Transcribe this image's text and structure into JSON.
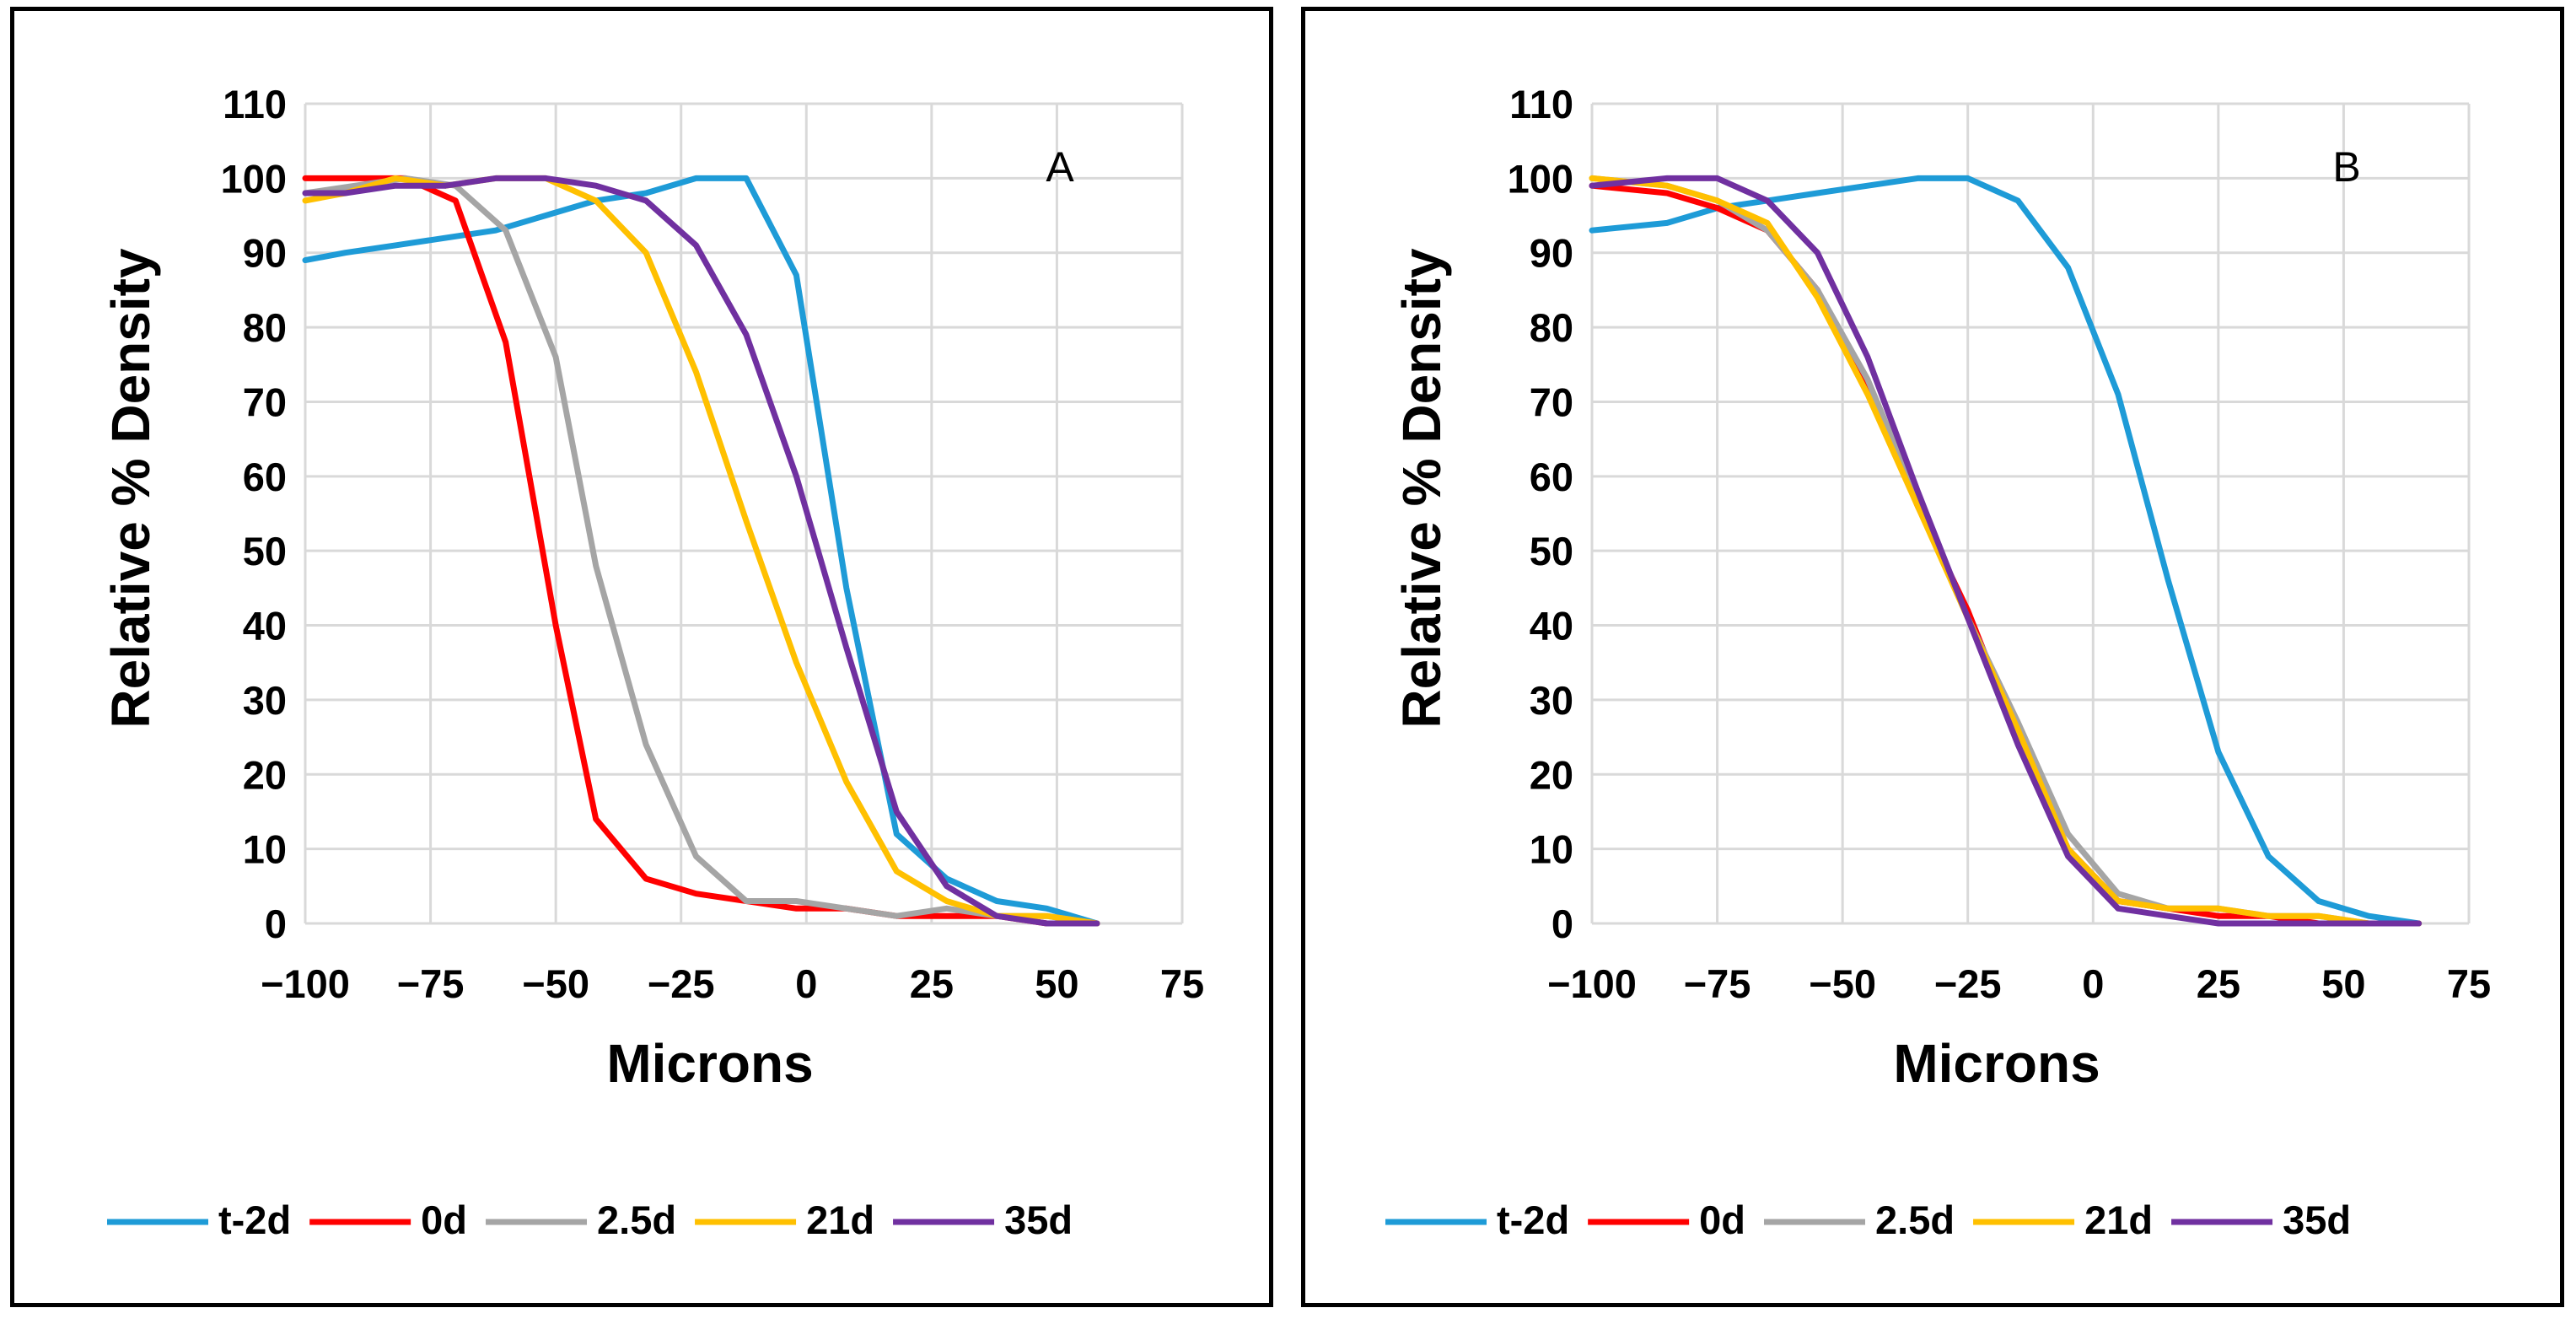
{
  "chart_data": [
    {
      "type": "line",
      "panel_label": "A",
      "xlabel": "Microns",
      "ylabel": "Relative % Density",
      "xlim": [
        -100,
        75
      ],
      "ylim": [
        0,
        110
      ],
      "xticks": [
        -100,
        -75,
        -50,
        -25,
        0,
        25,
        50,
        75
      ],
      "xtick_labels": [
        "−100",
        "−75",
        "−50",
        "−25",
        "0",
        "25",
        "50",
        "75"
      ],
      "yticks": [
        0,
        10,
        20,
        30,
        40,
        50,
        60,
        70,
        80,
        90,
        100,
        110
      ],
      "ytick_labels": [
        "0",
        "10",
        "20",
        "30",
        "40",
        "50",
        "60",
        "70",
        "80",
        "90",
        "100",
        "110"
      ],
      "grid": true,
      "legend_position": "bottom",
      "series": [
        {
          "name": "t-2d",
          "color": "#1E9BD7",
          "x": [
            -100,
            -92,
            -82,
            -72,
            -62,
            -52,
            -42,
            -32,
            -22,
            -12,
            -2,
            8,
            18,
            28,
            38,
            48,
            58
          ],
          "y": [
            89,
            90,
            91,
            92,
            93,
            95,
            97,
            98,
            100,
            100,
            87,
            45,
            12,
            6,
            3,
            2,
            0
          ]
        },
        {
          "name": "0d",
          "color": "#FF0000",
          "x": [
            -100,
            -90,
            -80,
            -70,
            -60,
            -50,
            -42,
            -32,
            -22,
            -12,
            -2,
            8,
            18,
            28,
            38,
            48,
            58
          ],
          "y": [
            100,
            100,
            100,
            97,
            78,
            40,
            14,
            6,
            4,
            3,
            2,
            2,
            1,
            1,
            1,
            0,
            0
          ]
        },
        {
          "name": "2.5d",
          "color": "#A5A5A5",
          "x": [
            -100,
            -90,
            -80,
            -70,
            -60,
            -50,
            -42,
            -32,
            -22,
            -12,
            -2,
            8,
            18,
            28,
            38,
            48,
            58
          ],
          "y": [
            98,
            99,
            100,
            99,
            93,
            76,
            48,
            24,
            9,
            3,
            3,
            2,
            1,
            2,
            1,
            1,
            0
          ]
        },
        {
          "name": "21d",
          "color": "#FFC000",
          "x": [
            -100,
            -92,
            -82,
            -72,
            -62,
            -52,
            -42,
            -32,
            -22,
            -12,
            -2,
            8,
            18,
            28,
            38,
            48,
            58
          ],
          "y": [
            97,
            98,
            100,
            99,
            100,
            100,
            97,
            90,
            74,
            54,
            35,
            19,
            7,
            3,
            1,
            1,
            0
          ]
        },
        {
          "name": "35d",
          "color": "#7030A0",
          "x": [
            -100,
            -92,
            -82,
            -72,
            -62,
            -52,
            -42,
            -32,
            -22,
            -12,
            -2,
            8,
            18,
            28,
            38,
            48,
            58
          ],
          "y": [
            98,
            98,
            99,
            99,
            100,
            100,
            99,
            97,
            91,
            79,
            60,
            37,
            15,
            5,
            1,
            0,
            0
          ]
        }
      ]
    },
    {
      "type": "line",
      "panel_label": "B",
      "xlabel": "Microns",
      "ylabel": "Relative % Density",
      "xlim": [
        -100,
        75
      ],
      "ylim": [
        0,
        110
      ],
      "xticks": [
        -100,
        -75,
        -50,
        -25,
        0,
        25,
        50,
        75
      ],
      "xtick_labels": [
        "−100",
        "−75",
        "−50",
        "−25",
        "0",
        "25",
        "50",
        "75"
      ],
      "yticks": [
        0,
        10,
        20,
        30,
        40,
        50,
        60,
        70,
        80,
        90,
        100,
        110
      ],
      "ytick_labels": [
        "0",
        "10",
        "20",
        "30",
        "40",
        "50",
        "60",
        "70",
        "80",
        "90",
        "100",
        "110"
      ],
      "grid": true,
      "legend_position": "bottom",
      "series": [
        {
          "name": "t-2d",
          "color": "#1E9BD7",
          "x": [
            -100,
            -85,
            -75,
            -65,
            -55,
            -45,
            -35,
            -25,
            -15,
            -5,
            5,
            15,
            25,
            35,
            45,
            55,
            65
          ],
          "y": [
            93,
            94,
            96,
            97,
            98,
            99,
            100,
            100,
            97,
            88,
            71,
            46,
            23,
            9,
            3,
            1,
            0
          ]
        },
        {
          "name": "0d",
          "color": "#FF0000",
          "x": [
            -100,
            -85,
            -75,
            -65,
            -55,
            -45,
            -35,
            -25,
            -15,
            -5,
            5,
            15,
            25,
            35,
            45,
            55,
            65
          ],
          "y": [
            99,
            98,
            96,
            93,
            85,
            72,
            56,
            42,
            25,
            10,
            3,
            2,
            1,
            1,
            0,
            0,
            0
          ]
        },
        {
          "name": "2.5d",
          "color": "#A5A5A5",
          "x": [
            -100,
            -85,
            -75,
            -65,
            -55,
            -45,
            -35,
            -25,
            -15,
            -5,
            5,
            15,
            25,
            35,
            45,
            55,
            65
          ],
          "y": [
            100,
            99,
            97,
            93,
            85,
            73,
            57,
            41,
            27,
            12,
            4,
            2,
            2,
            1,
            1,
            0,
            0
          ]
        },
        {
          "name": "21d",
          "color": "#FFC000",
          "x": [
            -100,
            -85,
            -75,
            -65,
            -55,
            -45,
            -35,
            -25,
            -15,
            -5,
            5,
            15,
            25,
            35,
            45,
            55,
            65
          ],
          "y": [
            100,
            99,
            97,
            94,
            84,
            71,
            56,
            41,
            26,
            10,
            3,
            2,
            2,
            1,
            1,
            0,
            0
          ]
        },
        {
          "name": "35d",
          "color": "#7030A0",
          "x": [
            -100,
            -85,
            -75,
            -65,
            -55,
            -45,
            -35,
            -25,
            -15,
            -5,
            5,
            15,
            25,
            35,
            45,
            55,
            65
          ],
          "y": [
            99,
            100,
            100,
            97,
            90,
            76,
            58,
            41,
            24,
            9,
            2,
            1,
            0,
            0,
            0,
            0,
            0
          ]
        }
      ]
    }
  ]
}
